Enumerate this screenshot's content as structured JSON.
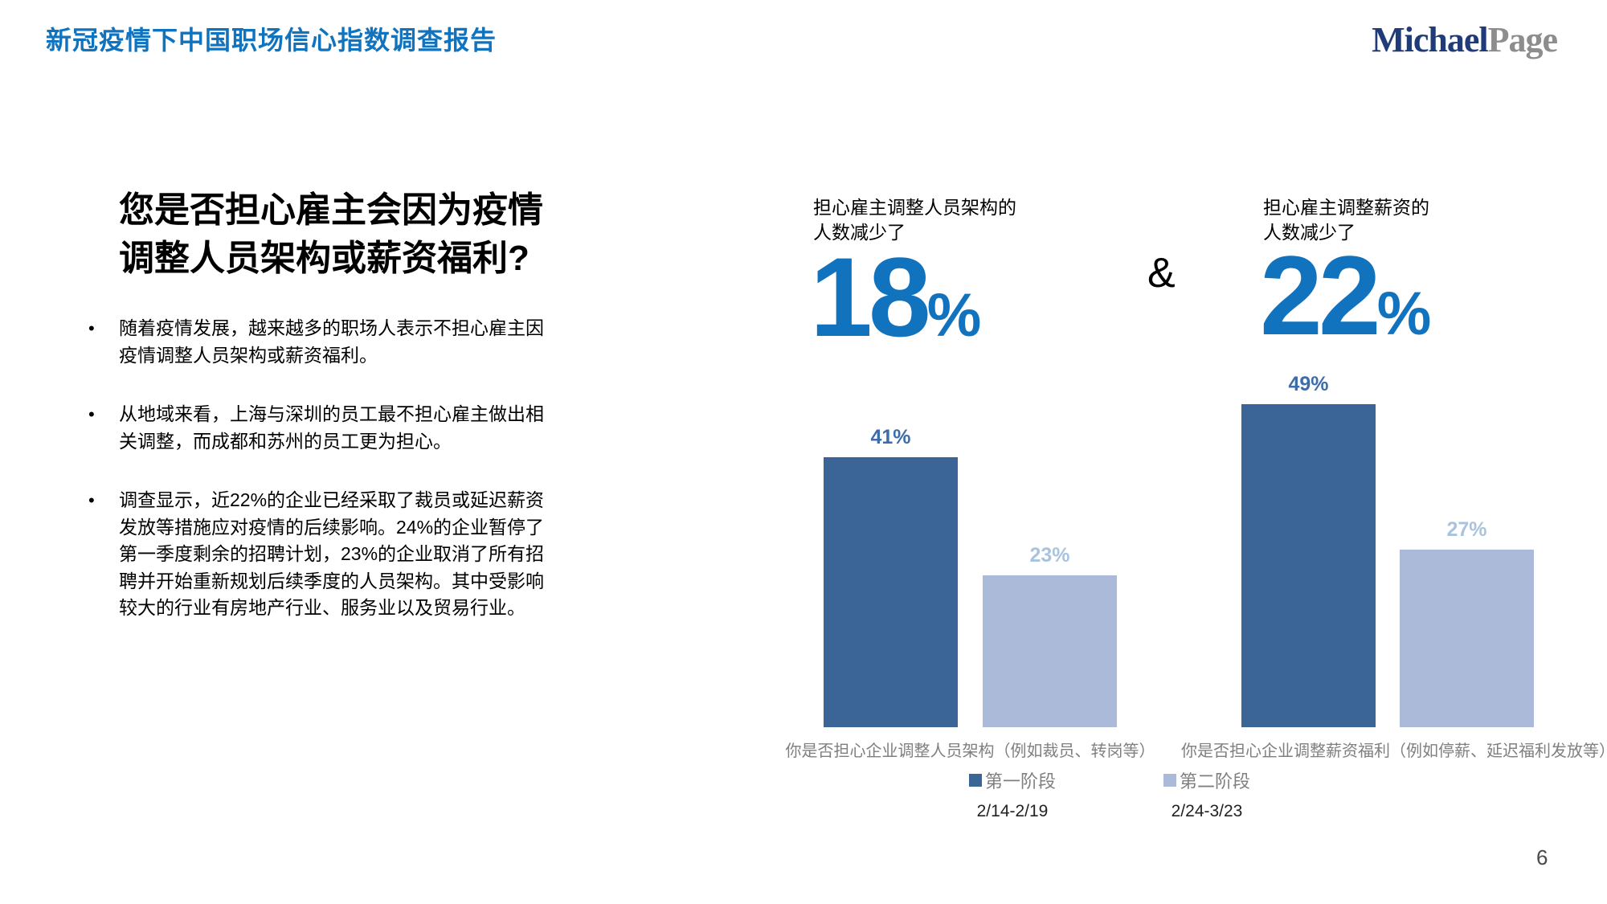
{
  "page": {
    "title": "新冠疫情下中国职场信心指数调查报告",
    "page_number": "6",
    "logo": {
      "part1": "Michael",
      "part2": "Page"
    }
  },
  "colors": {
    "accent_blue": "#1173BE",
    "bar_dark": "#3B6596",
    "bar_light": "#ABBAD9",
    "bar_label_dark": "#3D6DA8",
    "bar_label_light": "#A9C3DF",
    "logo_navy": "#1F3C78",
    "logo_gray": "#8D8D8D",
    "axis_text_gray": "#7F7F7F"
  },
  "left": {
    "heading_line1": "您是否担心雇主会因为疫情",
    "heading_line2": "调整人员架构或薪资福利?",
    "bullets": [
      "随着疫情发展，越来越多的职场人表示不担心雇主因疫情调整人员架构或薪资福利。",
      "从地域来看，上海与深圳的员工最不担心雇主做出相关调整，而成都和苏州的员工更为担心。",
      "调查显示，近22%的企业已经采取了裁员或延迟薪资发放等措施应对疫情的后续影响。24%的企业暂停了第一季度剩余的招聘计划，23%的企业取消了所有招聘并开始重新规划后续季度的人员架构。其中受影响较大的行业有房地产行业、服务业以及贸易行业。"
    ]
  },
  "stats": {
    "stat1": {
      "label_line1": "担心雇主调整人员架构的",
      "label_line2": "人数减少了",
      "value": "18",
      "unit": "%"
    },
    "ampersand": "&",
    "stat2": {
      "label_line1": "担心雇主调整薪资的",
      "label_line2": "人数减少了",
      "value": "22",
      "unit": "%"
    }
  },
  "chart_data": [
    {
      "type": "bar",
      "title": "你是否担心企业调整人员架构（例如裁员、转岗等）",
      "categories": [
        "第一阶段",
        "第二阶段"
      ],
      "values": [
        41,
        23
      ],
      "unit": "%",
      "ylim": [
        0,
        50
      ],
      "grid": false,
      "legend_position": "bottom"
    },
    {
      "type": "bar",
      "title": "你是否担心企业调整薪资福利（例如停薪、延迟福利发放等）",
      "categories": [
        "第一阶段",
        "第二阶段"
      ],
      "values": [
        49,
        27
      ],
      "unit": "%",
      "ylim": [
        0,
        50
      ],
      "grid": false,
      "legend_position": "bottom"
    }
  ],
  "legend": {
    "items": [
      {
        "label": "第一阶段",
        "color": "#3B6596",
        "date_range": "2/14-2/19"
      },
      {
        "label": "第二阶段",
        "color": "#ABBAD9",
        "date_range": "2/24-3/23"
      }
    ]
  }
}
